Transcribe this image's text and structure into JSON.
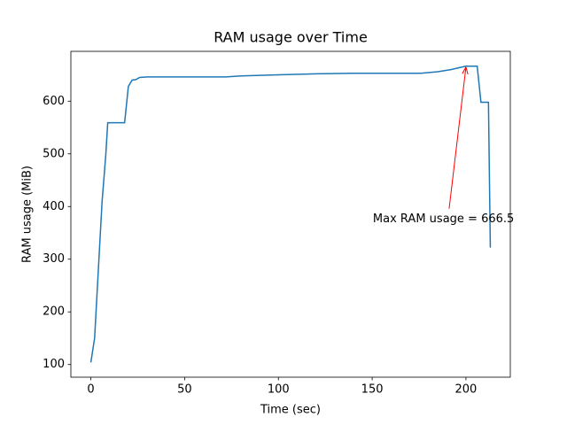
{
  "chart_data": {
    "type": "line",
    "title": "RAM usage over Time",
    "x_label": "Time (sec)",
    "y_label": "RAM usage (MiB)",
    "x": [
      0,
      2,
      4,
      6,
      8,
      9,
      18,
      20,
      22,
      24,
      26,
      30,
      50,
      72,
      80,
      100,
      120,
      140,
      176,
      185,
      192,
      198,
      200,
      206,
      208,
      212,
      213
    ],
    "values": [
      104,
      150,
      280,
      410,
      500,
      559,
      559,
      628,
      640,
      641,
      645,
      646,
      646,
      646,
      648,
      650,
      652,
      653,
      653,
      656,
      660,
      665,
      666.5,
      666.5,
      598,
      598,
      322
    ],
    "color": "#1f77b4",
    "xlim": [
      -10.65,
      223.65
    ],
    "ylim": [
      76,
      694.6
    ],
    "xticks": [
      0,
      50,
      100,
      150,
      200
    ],
    "yticks": [
      100,
      200,
      300,
      400,
      500,
      600
    ],
    "annotation": {
      "text": "Max RAM usage = 666.5",
      "x": 200,
      "y": 666.5,
      "color": "red"
    }
  }
}
